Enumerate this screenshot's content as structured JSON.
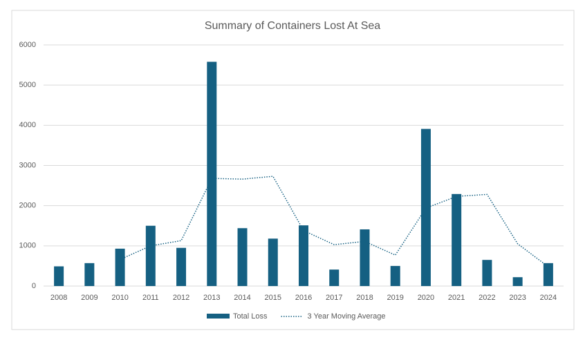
{
  "chart_data": {
    "type": "bar",
    "title": "Summary of Containers Lost At Sea",
    "categories": [
      "2008",
      "2009",
      "2010",
      "2011",
      "2012",
      "2013",
      "2014",
      "2015",
      "2016",
      "2017",
      "2018",
      "2019",
      "2020",
      "2021",
      "2022",
      "2023",
      "2024"
    ],
    "series": [
      {
        "name": "Total Loss",
        "type": "bar",
        "color": "#156082",
        "values": [
          490,
          570,
          930,
          1500,
          950,
          5580,
          1440,
          1180,
          1510,
          410,
          1410,
          500,
          3910,
          2290,
          650,
          220,
          570
        ]
      },
      {
        "name": "3 Year Moving Average",
        "type": "line",
        "style": "dotted",
        "color": "#156082",
        "values": [
          null,
          null,
          660,
          1000,
          1130,
          2680,
          2660,
          2730,
          1380,
          1030,
          1110,
          770,
          1940,
          2230,
          2280,
          1050,
          480
        ]
      }
    ],
    "ylim": [
      0,
      6000
    ],
    "yticks": [
      0,
      1000,
      2000,
      3000,
      4000,
      5000,
      6000
    ],
    "grid": true,
    "legend": "bottom"
  }
}
